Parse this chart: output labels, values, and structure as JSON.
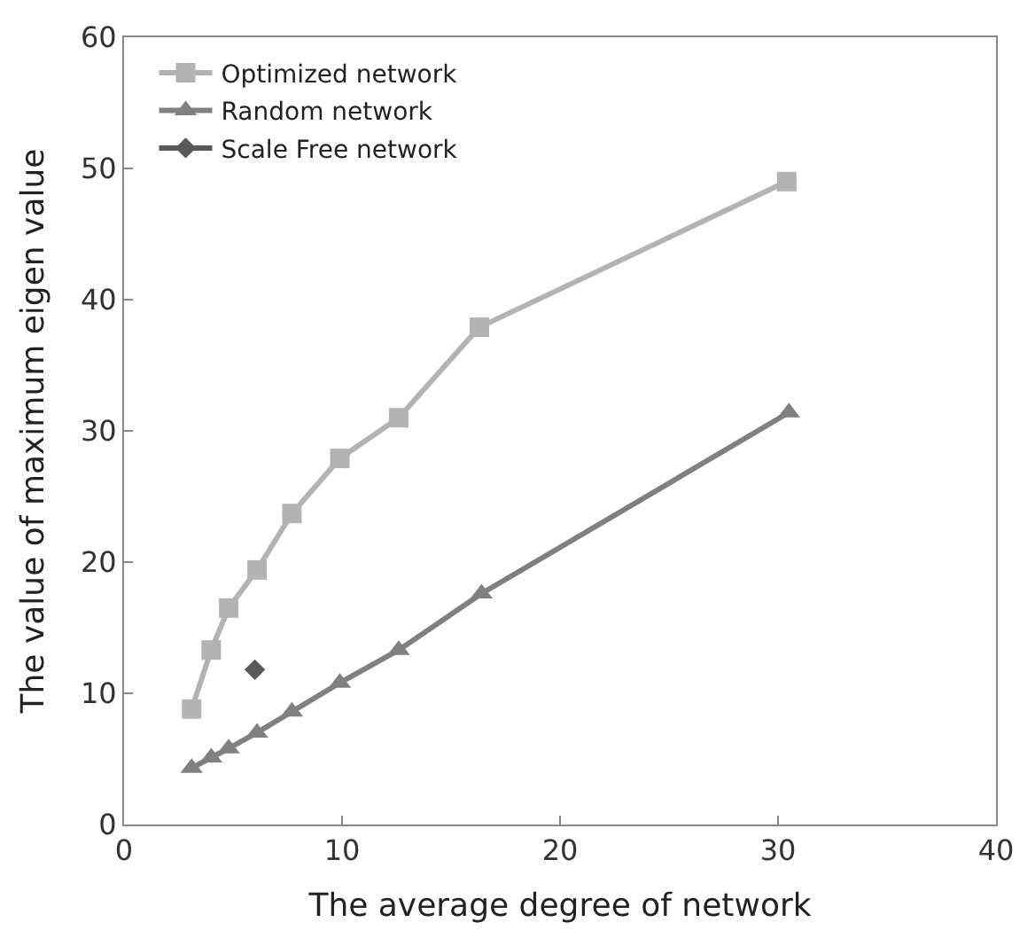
{
  "chart_data": {
    "type": "line",
    "xlabel": "The average degree of network",
    "ylabel": "The value of maximum eigen value",
    "xlim": [
      0,
      40
    ],
    "xticks": [
      0,
      10,
      20,
      30,
      40
    ],
    "ylim": [
      0,
      60
    ],
    "yticks": [
      0,
      10,
      20,
      30,
      40,
      50,
      60
    ],
    "legend": "top left",
    "series": [
      {
        "name": "Optimized network",
        "color": "#b3b3b3",
        "marker": "square",
        "x": [
          3.1,
          4.0,
          4.8,
          6.1,
          7.7,
          9.9,
          12.6,
          16.3,
          30.4
        ],
        "values": [
          8.8,
          13.3,
          16.5,
          19.4,
          23.7,
          27.9,
          31.0,
          37.9,
          49.0
        ]
      },
      {
        "name": "Random network",
        "color": "#808080",
        "marker": "triangle",
        "x": [
          3.1,
          4.0,
          4.8,
          6.1,
          7.7,
          9.9,
          12.6,
          16.4,
          30.5
        ],
        "values": [
          4.3,
          5.1,
          5.8,
          7.0,
          8.6,
          10.8,
          13.3,
          17.6,
          31.4
        ]
      },
      {
        "name": "Scale Free network",
        "color": "#595959",
        "marker": "diamond",
        "x": [
          6.0
        ],
        "values": [
          11.8
        ]
      }
    ]
  }
}
